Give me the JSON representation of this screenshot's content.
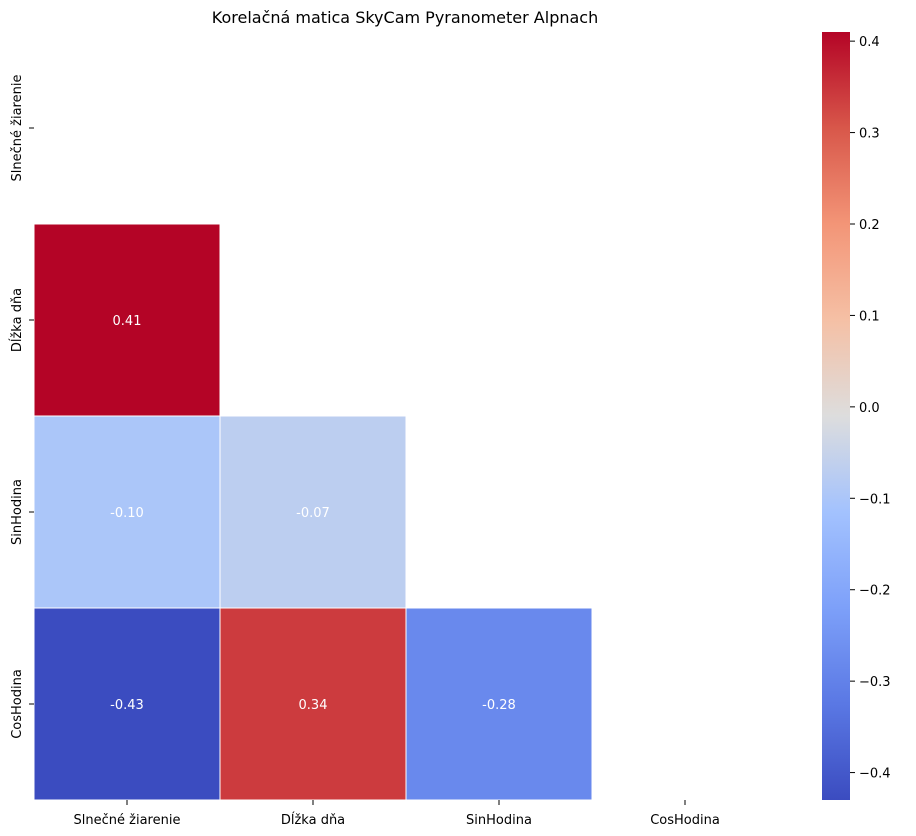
{
  "chart_data": {
    "type": "heatmap",
    "title": "Korelačná matica SkyCam Pyranometer Alpnach",
    "rows": [
      "Slnečné žiarenie",
      "Dĺžka dňa",
      "SinHodina",
      "CosHodina"
    ],
    "cols": [
      "Slnečné žiarenie",
      "Dĺžka dňa",
      "SinHodina",
      "CosHodina"
    ],
    "cells": [
      {
        "row": 1,
        "col": 0,
        "value": 0.41,
        "label": "0.41"
      },
      {
        "row": 2,
        "col": 0,
        "value": -0.1,
        "label": "-0.10"
      },
      {
        "row": 2,
        "col": 1,
        "value": -0.07,
        "label": "-0.07"
      },
      {
        "row": 3,
        "col": 0,
        "value": -0.43,
        "label": "-0.43"
      },
      {
        "row": 3,
        "col": 1,
        "value": 0.34,
        "label": "0.34"
      },
      {
        "row": 3,
        "col": 2,
        "value": -0.28,
        "label": "-0.28"
      }
    ],
    "mask": "upper triangle and diagonal hidden",
    "colormap": "coolwarm",
    "vmin": -0.43,
    "vmax": 0.41,
    "colorbar_ticks": [
      0.4,
      0.3,
      0.2,
      0.1,
      0.0,
      -0.1,
      -0.2,
      -0.3,
      -0.4
    ],
    "colorbar_tick_labels": [
      "0.4",
      "0.3",
      "0.2",
      "0.1",
      "0.0",
      "−0.1",
      "−0.2",
      "−0.3",
      "−0.4"
    ]
  }
}
